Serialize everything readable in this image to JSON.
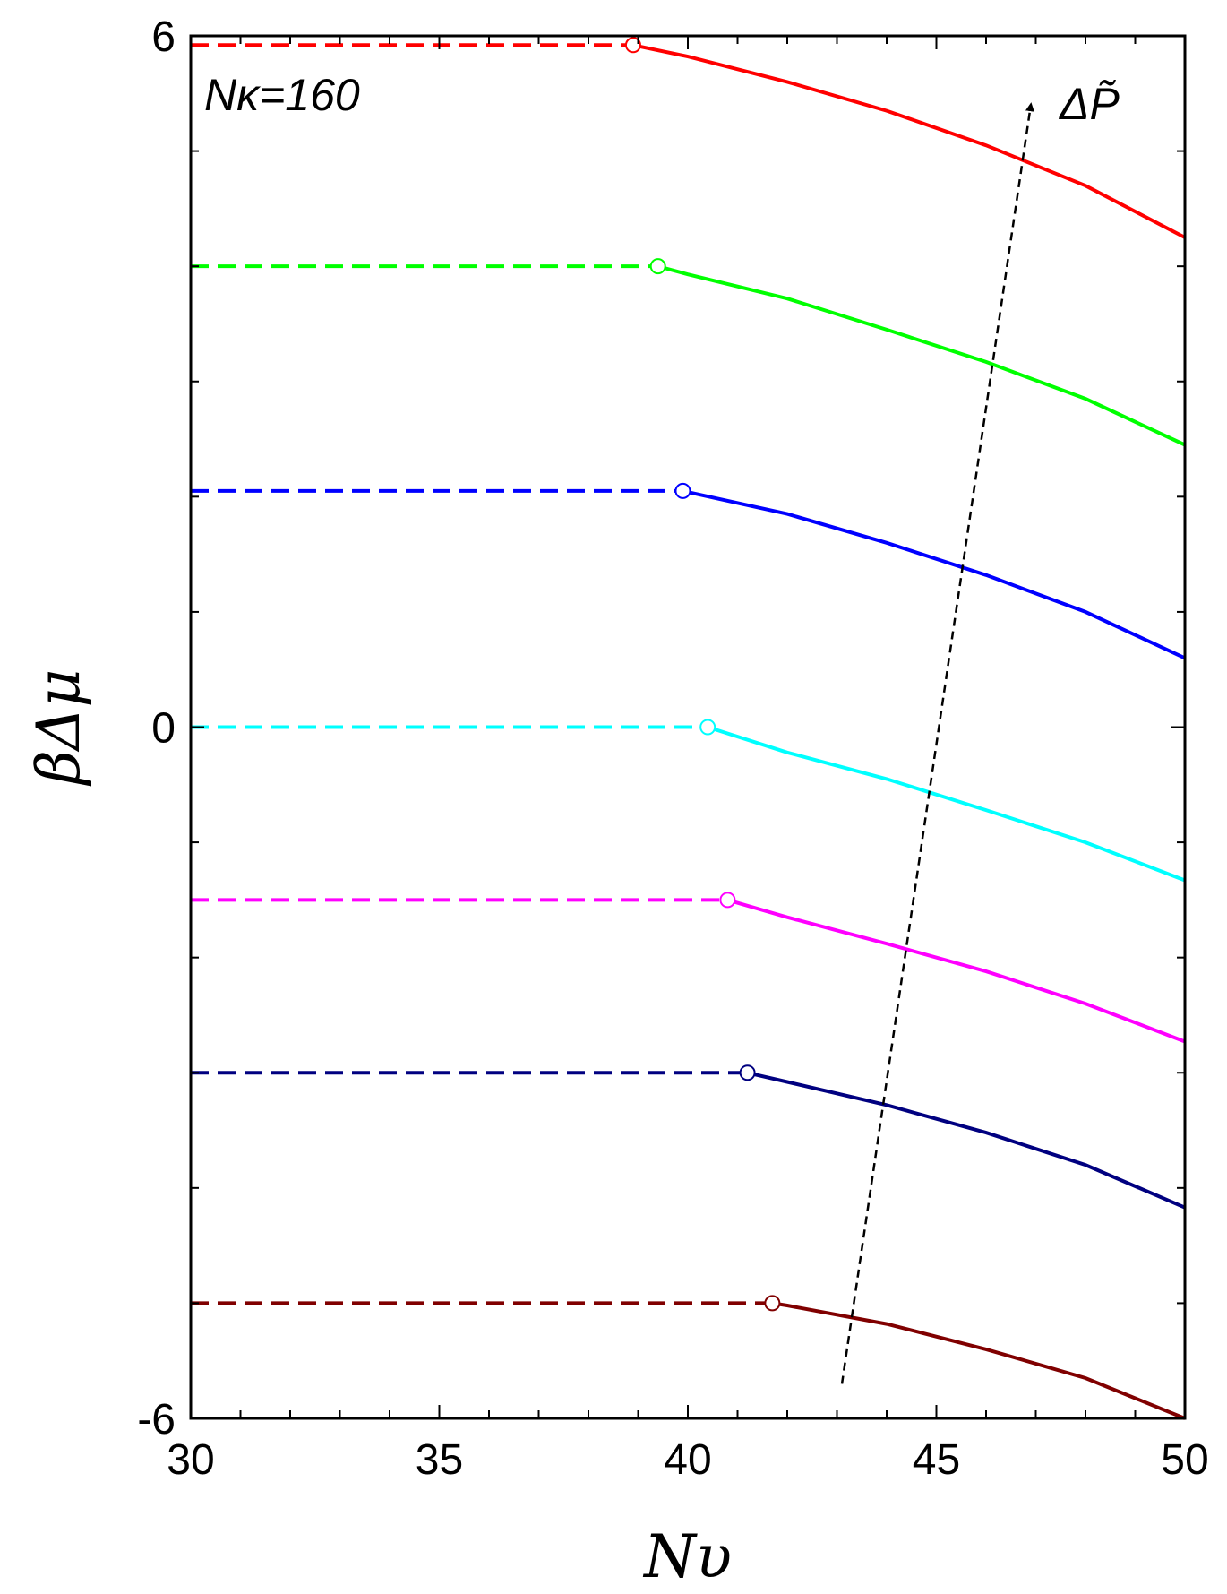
{
  "chart_data": {
    "type": "line",
    "xlabel": "Nυ",
    "ylabel": "βΔμ",
    "xlim": [
      30,
      50
    ],
    "ylim": [
      -6,
      6
    ],
    "x_ticks": [
      30,
      35,
      40,
      45,
      50
    ],
    "y_ticks": [
      -6,
      0,
      6
    ],
    "grid": false,
    "annotations": {
      "nk": "Nκ=160",
      "arrow": "ΔP̃"
    },
    "arrow_direction": {
      "from": [
        43.1,
        -5.7
      ],
      "to": [
        46.9,
        5.4
      ]
    },
    "series": [
      {
        "color": "#ff0000",
        "level": 5.92,
        "transition": 38.9,
        "end": 4.25,
        "points": [
          [
            38.9,
            5.92
          ],
          [
            40,
            5.82
          ],
          [
            42,
            5.6
          ],
          [
            44,
            5.35
          ],
          [
            46,
            5.05
          ],
          [
            48,
            4.7
          ],
          [
            50,
            4.25
          ]
        ]
      },
      {
        "color": "#00ff00",
        "level": 4.0,
        "transition": 39.4,
        "end": 2.45,
        "points": [
          [
            39.4,
            4.0
          ],
          [
            40,
            3.93
          ],
          [
            42,
            3.72
          ],
          [
            44,
            3.45
          ],
          [
            46,
            3.17
          ],
          [
            48,
            2.85
          ],
          [
            50,
            2.45
          ]
        ]
      },
      {
        "color": "#0000ff",
        "level": 2.05,
        "transition": 39.9,
        "end": 0.6,
        "points": [
          [
            39.9,
            2.05
          ],
          [
            42,
            1.85
          ],
          [
            44,
            1.6
          ],
          [
            46,
            1.32
          ],
          [
            48,
            1.0
          ],
          [
            50,
            0.6
          ]
        ]
      },
      {
        "color": "#00ffff",
        "level": 0.0,
        "transition": 40.4,
        "end": -1.33,
        "points": [
          [
            40.4,
            0.0
          ],
          [
            42,
            -0.22
          ],
          [
            44,
            -0.45
          ],
          [
            46,
            -0.72
          ],
          [
            48,
            -1.0
          ],
          [
            50,
            -1.33
          ]
        ]
      },
      {
        "color": "#ff00ff",
        "level": -1.5,
        "transition": 40.8,
        "end": -2.73,
        "points": [
          [
            40.8,
            -1.5
          ],
          [
            42,
            -1.65
          ],
          [
            44,
            -1.88
          ],
          [
            46,
            -2.12
          ],
          [
            48,
            -2.4
          ],
          [
            50,
            -2.73
          ]
        ]
      },
      {
        "color": "#000080",
        "level": -3.0,
        "transition": 41.2,
        "end": -4.17,
        "points": [
          [
            41.2,
            -3.0
          ],
          [
            42,
            -3.08
          ],
          [
            44,
            -3.28
          ],
          [
            46,
            -3.52
          ],
          [
            48,
            -3.8
          ],
          [
            50,
            -4.17
          ]
        ]
      },
      {
        "color": "#800000",
        "level": -5.0,
        "transition": 41.7,
        "end": -6.0,
        "points": [
          [
            41.7,
            -5.0
          ],
          [
            42,
            -5.02
          ],
          [
            44,
            -5.18
          ],
          [
            46,
            -5.4
          ],
          [
            48,
            -5.65
          ],
          [
            50,
            -6.0
          ]
        ]
      }
    ]
  }
}
